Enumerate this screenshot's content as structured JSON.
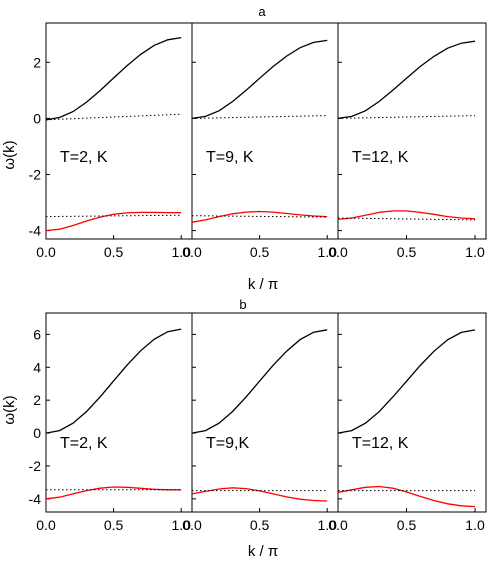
{
  "chart_data": [
    {
      "title": "a",
      "type": "line",
      "xlabel": "k / π",
      "ylabel": "ω(k)",
      "xlim": [
        0,
        1.08
      ],
      "ylim": [
        -4.3,
        3.4
      ],
      "yticks": [
        -4,
        -2,
        0,
        2
      ],
      "y_tick_labels": [
        "-4",
        "-2",
        "0",
        "2"
      ],
      "xticks": [
        0,
        0.5,
        1
      ],
      "x_tick_labels": [
        "0.0",
        "0.5",
        "1.0"
      ],
      "panels": [
        {
          "annotation": "T=2, K",
          "series": [
            {
              "color": "#000000",
              "style": "solid",
              "x": [
                0,
                0.1,
                0.2,
                0.3,
                0.4,
                0.5,
                0.6,
                0.7,
                0.8,
                0.9,
                1.0
              ],
              "y": [
                -0.05,
                0.03,
                0.24,
                0.58,
                0.99,
                1.44,
                1.88,
                2.28,
                2.6,
                2.8,
                2.88
              ]
            },
            {
              "color": "#000000",
              "style": "dotted",
              "x": [
                0,
                1.0
              ],
              "y": [
                -0.05,
                0.15
              ]
            },
            {
              "color": "#ff0000",
              "style": "solid",
              "x": [
                0,
                0.1,
                0.2,
                0.3,
                0.4,
                0.5,
                0.6,
                0.7,
                0.8,
                0.9,
                1.0
              ],
              "y": [
                -4.0,
                -3.95,
                -3.82,
                -3.66,
                -3.52,
                -3.42,
                -3.37,
                -3.35,
                -3.35,
                -3.36,
                -3.36
              ]
            },
            {
              "color": "#000000",
              "style": "dotted",
              "x": [
                0,
                1.0
              ],
              "y": [
                -3.5,
                -3.45
              ]
            }
          ]
        },
        {
          "annotation": "T=9, K",
          "series": [
            {
              "color": "#000000",
              "style": "solid",
              "x": [
                0,
                0.1,
                0.2,
                0.3,
                0.4,
                0.5,
                0.6,
                0.7,
                0.8,
                0.9,
                1.0
              ],
              "y": [
                0.0,
                0.07,
                0.27,
                0.6,
                1.0,
                1.43,
                1.85,
                2.22,
                2.52,
                2.71,
                2.78
              ]
            },
            {
              "color": "#000000",
              "style": "dotted",
              "x": [
                0,
                1.0
              ],
              "y": [
                0.0,
                0.1
              ]
            },
            {
              "color": "#ff0000",
              "style": "solid",
              "x": [
                0,
                0.1,
                0.2,
                0.3,
                0.4,
                0.5,
                0.6,
                0.7,
                0.8,
                0.9,
                1.0
              ],
              "y": [
                -3.7,
                -3.62,
                -3.5,
                -3.4,
                -3.34,
                -3.32,
                -3.34,
                -3.39,
                -3.44,
                -3.48,
                -3.5
              ]
            },
            {
              "color": "#000000",
              "style": "dotted",
              "x": [
                0,
                1.0
              ],
              "y": [
                -3.47,
                -3.52
              ]
            }
          ]
        },
        {
          "annotation": "T=12, K",
          "series": [
            {
              "color": "#000000",
              "style": "solid",
              "x": [
                0,
                0.1,
                0.2,
                0.3,
                0.4,
                0.5,
                0.6,
                0.7,
                0.8,
                0.9,
                1.0
              ],
              "y": [
                0.0,
                0.07,
                0.27,
                0.6,
                1.0,
                1.43,
                1.85,
                2.21,
                2.5,
                2.68,
                2.75
              ]
            },
            {
              "color": "#000000",
              "style": "dotted",
              "x": [
                0,
                1.0
              ],
              "y": [
                0.0,
                0.1
              ]
            },
            {
              "color": "#ff0000",
              "style": "solid",
              "x": [
                0,
                0.1,
                0.2,
                0.3,
                0.4,
                0.5,
                0.6,
                0.7,
                0.8,
                0.9,
                1.0
              ],
              "y": [
                -3.6,
                -3.55,
                -3.45,
                -3.35,
                -3.3,
                -3.3,
                -3.35,
                -3.42,
                -3.5,
                -3.55,
                -3.58
              ]
            },
            {
              "color": "#000000",
              "style": "dotted",
              "x": [
                0,
                1.0
              ],
              "y": [
                -3.55,
                -3.62
              ]
            }
          ]
        }
      ]
    },
    {
      "title": "b",
      "type": "line",
      "xlabel": "k / π",
      "ylabel": "ω(k)",
      "xlim": [
        0,
        1.08
      ],
      "ylim": [
        -4.8,
        7.3
      ],
      "yticks": [
        -4,
        -2,
        0,
        2,
        4,
        6
      ],
      "y_tick_labels": [
        "-4",
        "-2",
        "0",
        "2",
        "4",
        "6"
      ],
      "xticks": [
        0,
        0.5,
        1
      ],
      "x_tick_labels": [
        "0.0",
        "0.5",
        "1.0"
      ],
      "panels": [
        {
          "annotation": "T=2, K",
          "series": [
            {
              "color": "#000000",
              "style": "solid",
              "x": [
                0,
                0.1,
                0.2,
                0.3,
                0.4,
                0.5,
                0.6,
                0.7,
                0.8,
                0.9,
                1.0
              ],
              "y": [
                0.0,
                0.15,
                0.6,
                1.31,
                2.2,
                3.17,
                4.13,
                5.0,
                5.7,
                6.16,
                6.32
              ]
            },
            {
              "color": "#ff0000",
              "style": "solid",
              "x": [
                0,
                0.1,
                0.2,
                0.3,
                0.4,
                0.5,
                0.6,
                0.7,
                0.8,
                0.9,
                1.0
              ],
              "y": [
                -4.0,
                -3.9,
                -3.7,
                -3.5,
                -3.35,
                -3.28,
                -3.3,
                -3.36,
                -3.42,
                -3.45,
                -3.45
              ]
            },
            {
              "color": "#000000",
              "style": "dotted",
              "x": [
                0,
                1.0
              ],
              "y": [
                -3.45,
                -3.45
              ]
            }
          ]
        },
        {
          "annotation": "T=9,K",
          "series": [
            {
              "color": "#000000",
              "style": "solid",
              "x": [
                0,
                0.1,
                0.2,
                0.3,
                0.4,
                0.5,
                0.6,
                0.7,
                0.8,
                0.9,
                1.0
              ],
              "y": [
                0.0,
                0.15,
                0.6,
                1.31,
                2.2,
                3.16,
                4.12,
                4.98,
                5.68,
                6.13,
                6.28
              ]
            },
            {
              "color": "#ff0000",
              "style": "solid",
              "x": [
                0,
                0.1,
                0.2,
                0.3,
                0.4,
                0.5,
                0.6,
                0.7,
                0.8,
                0.9,
                1.0
              ],
              "y": [
                -3.7,
                -3.55,
                -3.4,
                -3.33,
                -3.38,
                -3.52,
                -3.7,
                -3.88,
                -4.02,
                -4.1,
                -4.13
              ]
            },
            {
              "color": "#000000",
              "style": "dotted",
              "x": [
                0,
                1.0
              ],
              "y": [
                -3.5,
                -3.5
              ]
            }
          ]
        },
        {
          "annotation": "T=12, K",
          "series": [
            {
              "color": "#000000",
              "style": "solid",
              "x": [
                0,
                0.1,
                0.2,
                0.3,
                0.4,
                0.5,
                0.6,
                0.7,
                0.8,
                0.9,
                1.0
              ],
              "y": [
                0.0,
                0.15,
                0.6,
                1.3,
                2.19,
                3.15,
                4.11,
                4.97,
                5.67,
                6.12,
                6.27
              ]
            },
            {
              "color": "#ff0000",
              "style": "solid",
              "x": [
                0,
                0.1,
                0.2,
                0.3,
                0.4,
                0.5,
                0.6,
                0.7,
                0.8,
                0.9,
                1.0
              ],
              "y": [
                -3.6,
                -3.45,
                -3.3,
                -3.25,
                -3.35,
                -3.58,
                -3.85,
                -4.1,
                -4.3,
                -4.42,
                -4.47
              ]
            },
            {
              "color": "#000000",
              "style": "dotted",
              "x": [
                0,
                1.0
              ],
              "y": [
                -3.5,
                -3.5
              ]
            }
          ]
        }
      ]
    }
  ]
}
